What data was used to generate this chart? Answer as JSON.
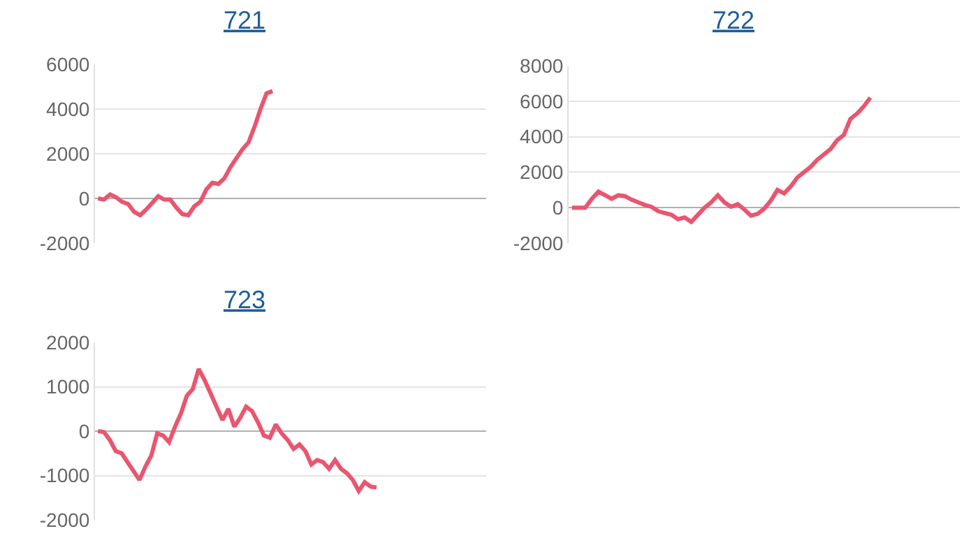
{
  "chart_data": [
    {
      "type": "line",
      "title": "721",
      "color": "#e9566f",
      "ylim": [
        -2000,
        6000
      ],
      "yticks": [
        -2000,
        0,
        2000,
        4000,
        6000
      ],
      "grid": "y",
      "tick_labels": "y",
      "categories": [
        null,
        null,
        null,
        null,
        null,
        null,
        null,
        null,
        null,
        null,
        null,
        null,
        null,
        null,
        null,
        null,
        null,
        null,
        null,
        null,
        null,
        null,
        null,
        null,
        null,
        null,
        null,
        null,
        null,
        null,
        null,
        null,
        null,
        null,
        null,
        null,
        null,
        null,
        null,
        null,
        null,
        null,
        null,
        null,
        null,
        null,
        null,
        null,
        null,
        null,
        null,
        null,
        null,
        null,
        null,
        null,
        null,
        null,
        null,
        null,
        null,
        null,
        null,
        null,
        null
      ],
      "values": [
        0,
        -50,
        180,
        50,
        -150,
        -250,
        -600,
        -750,
        -500,
        -200,
        100,
        -50,
        -50,
        -400,
        -700,
        -750,
        -350,
        -150,
        400,
        700,
        650,
        900,
        1400,
        1800,
        2200,
        2500,
        3200,
        4000,
        4700,
        4800,
        null,
        null,
        null,
        null,
        null,
        null,
        null,
        null,
        null,
        null,
        null,
        null,
        null,
        null,
        null,
        null,
        null,
        null,
        null,
        null,
        null,
        null,
        null,
        null,
        null,
        null,
        null,
        null,
        null,
        null,
        null,
        null,
        null,
        null,
        null
      ]
    },
    {
      "type": "line",
      "title": "722",
      "color": "#e9566f",
      "ylim": [
        -2000,
        8000
      ],
      "yticks": [
        -2000,
        0,
        2000,
        4000,
        6000,
        8000
      ],
      "grid": "y",
      "tick_labels": "y",
      "categories": [
        null,
        null,
        null,
        null,
        null,
        null,
        null,
        null,
        null,
        null,
        null,
        null,
        null,
        null,
        null,
        null,
        null,
        null,
        null,
        null,
        null,
        null,
        null,
        null,
        null,
        null,
        null,
        null,
        null,
        null,
        null,
        null,
        null,
        null,
        null,
        null,
        null,
        null,
        null,
        null,
        null,
        null,
        null,
        null,
        null,
        null,
        null,
        null,
        null,
        null,
        null,
        null,
        null,
        null,
        null,
        null,
        null,
        null,
        null
      ],
      "values": [
        0,
        0,
        0,
        500,
        900,
        700,
        500,
        700,
        650,
        450,
        300,
        150,
        50,
        -200,
        -300,
        -400,
        -650,
        -550,
        -800,
        -400,
        0,
        300,
        700,
        300,
        50,
        200,
        -100,
        -450,
        -350,
        -50,
        400,
        1000,
        800,
        1200,
        1700,
        2000,
        2300,
        2700,
        3000,
        3300,
        3800,
        4100,
        5000,
        5300,
        5700,
        6200,
        null,
        null,
        null,
        null,
        null,
        null,
        null,
        null,
        null,
        null,
        null,
        null,
        null
      ]
    },
    {
      "type": "line",
      "title": "723",
      "color": "#e9566f",
      "ylim": [
        -2000,
        2000
      ],
      "yticks": [
        -2000,
        -1000,
        0,
        1000,
        2000
      ],
      "grid": "y",
      "tick_labels": "y",
      "categories": [
        null,
        null,
        null,
        null,
        null,
        null,
        null,
        null,
        null,
        null,
        null,
        null,
        null,
        null,
        null,
        null,
        null,
        null,
        null,
        null,
        null,
        null,
        null,
        null,
        null,
        null,
        null,
        null,
        null,
        null,
        null,
        null,
        null,
        null,
        null,
        null,
        null,
        null,
        null,
        null,
        null,
        null,
        null,
        null,
        null,
        null,
        null,
        null,
        null,
        null,
        null,
        null,
        null,
        null,
        null,
        null,
        null,
        null,
        null,
        null,
        null,
        null,
        null,
        null,
        null,
        null
      ],
      "values": [
        0,
        -20,
        -200,
        -450,
        -500,
        -700,
        -900,
        -1100,
        -800,
        -550,
        -50,
        -100,
        -250,
        100,
        400,
        800,
        950,
        1400,
        1150,
        850,
        550,
        250,
        500,
        100,
        300,
        550,
        450,
        200,
        -100,
        -150,
        150,
        -50,
        -200,
        -400,
        -300,
        -450,
        -750,
        -650,
        -700,
        -850,
        -650,
        -850,
        -950,
        -1100,
        -1350,
        -1150,
        -1250,
        -1270,
        null,
        null,
        null,
        null,
        null,
        null,
        null,
        null,
        null,
        null,
        null,
        null,
        null,
        null,
        null,
        null,
        null,
        null
      ]
    }
  ]
}
